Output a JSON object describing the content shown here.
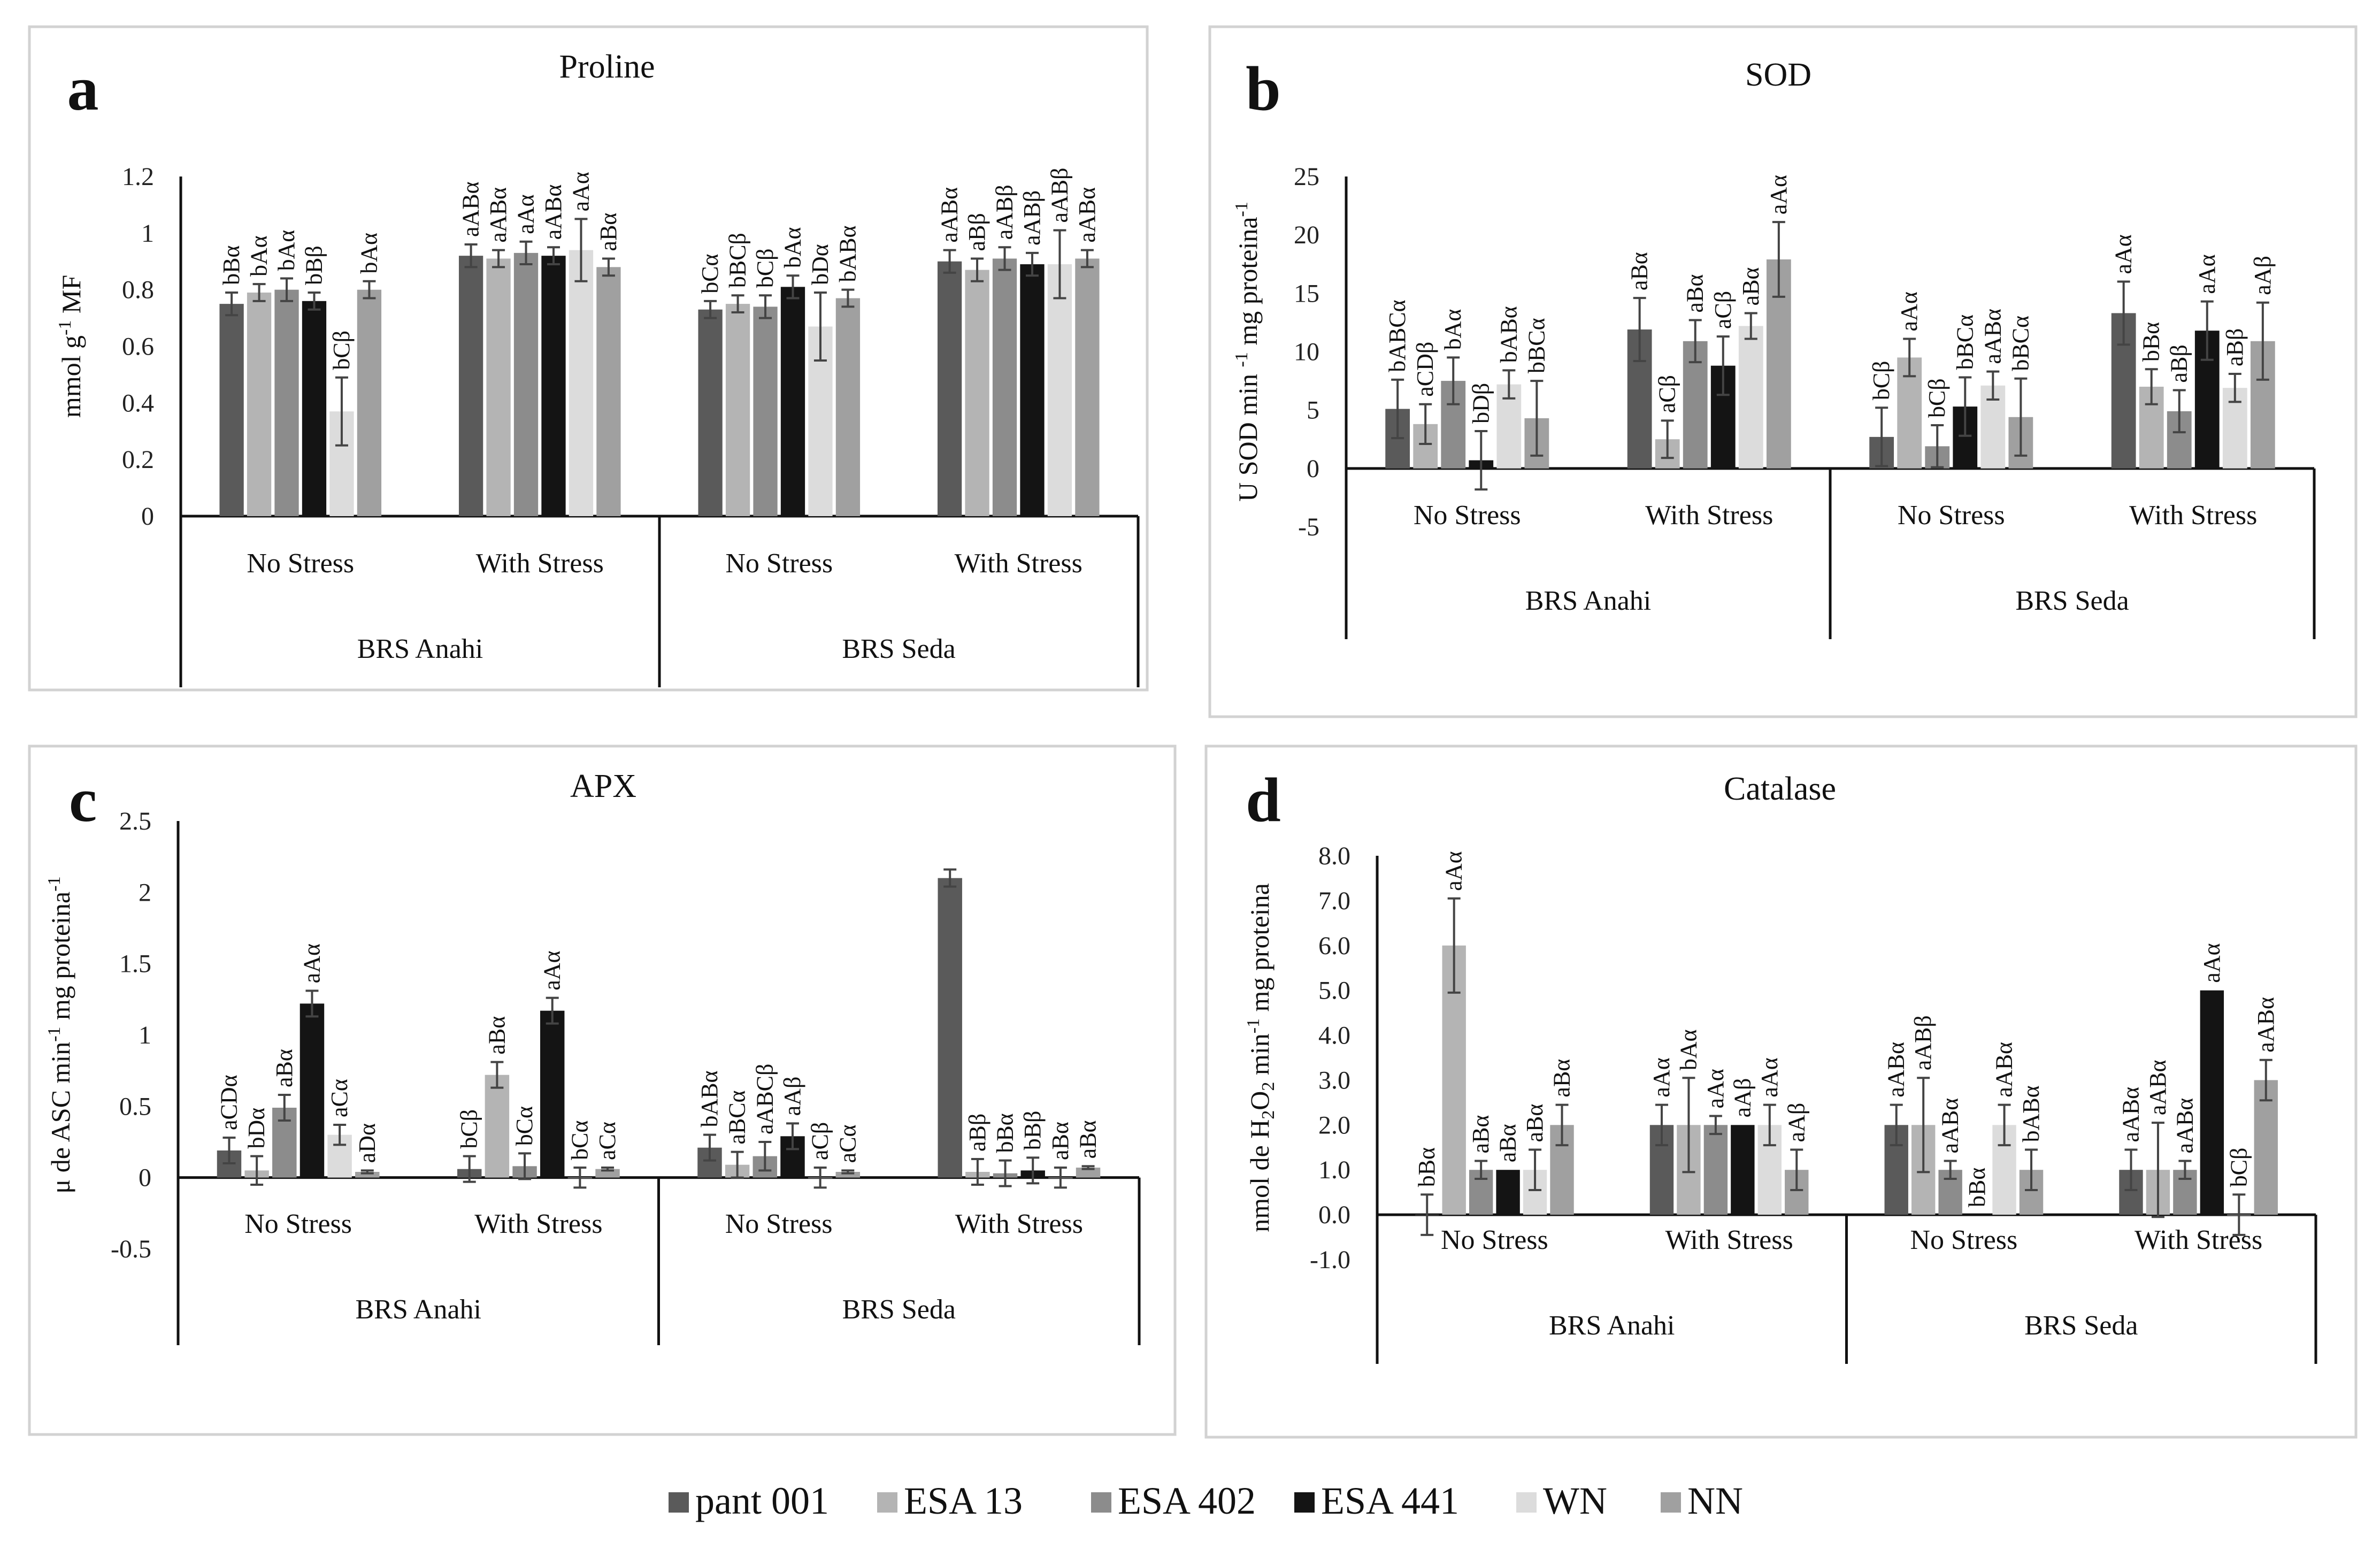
{
  "legend": {
    "items": [
      {
        "name": "pant 001",
        "color": "#5a5a5a"
      },
      {
        "name": "ESA 13",
        "color": "#b4b4b4"
      },
      {
        "name": "ESA 402",
        "color": "#8c8c8c"
      },
      {
        "name": "ESA 441",
        "color": "#141414"
      },
      {
        "name": "WN",
        "color": "#dcdcdc"
      },
      {
        "name": "NN",
        "color": "#a0a0a0"
      }
    ]
  },
  "chart_data": [
    {
      "type": "bar",
      "letter": "a",
      "title": "Proline",
      "ylabel_parts": [
        "mmol g",
        "-1",
        " MF"
      ],
      "ylim": [
        0,
        1.2
      ],
      "yticks": [
        "0",
        "0.2",
        "0.4",
        "0.6",
        "0.8",
        "1",
        "1.2"
      ],
      "categories": [
        "No Stress",
        "With Stress",
        "No Stress",
        "With Stress"
      ],
      "groups": [
        "BRS Anahi",
        "BRS Seda"
      ],
      "series": [
        {
          "name": "pant 001",
          "values": [
            0.75,
            0.92,
            0.73,
            0.9
          ],
          "errors": [
            0.04,
            0.04,
            0.03,
            0.04
          ],
          "labels": [
            "bBα",
            "aABα",
            "bCα",
            "aABα"
          ]
        },
        {
          "name": "ESA 13",
          "values": [
            0.79,
            0.91,
            0.75,
            0.87
          ],
          "errors": [
            0.03,
            0.03,
            0.03,
            0.04
          ],
          "labels": [
            "bAα",
            "aABα",
            "bBCβ",
            "aBβ"
          ]
        },
        {
          "name": "ESA 402",
          "values": [
            0.8,
            0.93,
            0.74,
            0.91
          ],
          "errors": [
            0.04,
            0.04,
            0.04,
            0.04
          ],
          "labels": [
            "bAα",
            "aAα",
            "bCβ",
            "aABβ"
          ]
        },
        {
          "name": "ESA 441",
          "values": [
            0.76,
            0.92,
            0.81,
            0.89
          ],
          "errors": [
            0.03,
            0.03,
            0.04,
            0.04
          ],
          "labels": [
            "bBβ",
            "aABα",
            "bAα",
            "aABβ"
          ]
        },
        {
          "name": "WN",
          "values": [
            0.37,
            0.94,
            0.67,
            0.89
          ],
          "errors": [
            0.12,
            0.11,
            0.12,
            0.12
          ],
          "labels": [
            "bCβ",
            "aAα",
            "bDα",
            "aABβ"
          ]
        },
        {
          "name": "NN",
          "values": [
            0.8,
            0.88,
            0.77,
            0.91
          ],
          "errors": [
            0.03,
            0.03,
            0.03,
            0.03
          ],
          "labels": [
            "bAα",
            "aBα",
            "bABα",
            "aABα"
          ]
        }
      ]
    },
    {
      "type": "bar",
      "letter": "b",
      "title": "SOD",
      "ylabel_parts": [
        "U SOD min ",
        "-1",
        " mg proteina",
        "-1",
        ""
      ],
      "ylim": [
        -5,
        25
      ],
      "yticks": [
        "-5",
        "0",
        "5",
        "10",
        "15",
        "20",
        "25"
      ],
      "categories": [
        "No Stress",
        "With Stress",
        "No Stress",
        "With Stress"
      ],
      "groups": [
        "BRS Anahi",
        "BRS Seda"
      ],
      "series": [
        {
          "name": "pant 001",
          "values": [
            5.1,
            11.9,
            2.7,
            13.3
          ],
          "errors": [
            2.5,
            2.7,
            2.5,
            2.7
          ],
          "labels": [
            "bABCα",
            "aBα",
            "bCβ",
            "aAα"
          ]
        },
        {
          "name": "ESA 13",
          "values": [
            3.8,
            2.5,
            9.5,
            7.0
          ],
          "errors": [
            1.7,
            1.6,
            1.6,
            1.5
          ],
          "labels": [
            "aCDβ",
            "aCβ",
            "aAα",
            "bBα"
          ]
        },
        {
          "name": "ESA 402",
          "values": [
            7.5,
            10.9,
            1.9,
            4.9
          ],
          "errors": [
            2.0,
            1.8,
            1.8,
            1.8
          ],
          "labels": [
            "bAα",
            "aBα",
            "bCβ",
            "aBβ"
          ]
        },
        {
          "name": "ESA 441",
          "values": [
            0.7,
            8.8,
            5.3,
            11.8
          ],
          "errors": [
            2.5,
            2.5,
            2.5,
            2.5
          ],
          "labels": [
            "bDβ",
            "aCβ",
            "bBCα",
            "aAα"
          ]
        },
        {
          "name": "WN",
          "values": [
            7.2,
            12.2,
            7.1,
            6.9
          ],
          "errors": [
            1.2,
            1.1,
            1.2,
            1.2
          ],
          "labels": [
            "bABα",
            "aBα",
            "aABα",
            "aBβ"
          ]
        },
        {
          "name": "NN",
          "values": [
            4.3,
            17.9,
            4.4,
            10.9
          ],
          "errors": [
            3.2,
            3.2,
            3.3,
            3.3
          ],
          "labels": [
            "bBCα",
            "aAα",
            "bBCα",
            "aAβ"
          ]
        }
      ]
    },
    {
      "type": "bar",
      "letter": "c",
      "title": "APX",
      "ylabel_parts": [
        "μ de ASC min",
        "-1",
        " mg proteina",
        "-1",
        ""
      ],
      "ylim": [
        -0.5,
        2.5
      ],
      "yticks": [
        "-0.5",
        "0",
        "0.5",
        "1",
        "1.5",
        "2",
        "2.5"
      ],
      "categories": [
        "No Stress",
        "With Stress",
        "No Stress",
        "With Stress"
      ],
      "groups": [
        "BRS Anahi",
        "BRS Seda"
      ],
      "series": [
        {
          "name": "pant 001",
          "values": [
            0.19,
            0.06,
            0.21,
            2.1
          ],
          "errors": [
            0.09,
            0.09,
            0.09,
            0.06
          ],
          "labels": [
            "aCDα",
            "bCβ",
            "bABα",
            ""
          ]
        },
        {
          "name": "ESA 13",
          "values": [
            0.05,
            0.72,
            0.09,
            0.04
          ],
          "errors": [
            0.1,
            0.09,
            0.09,
            0.09
          ],
          "labels": [
            "bDα",
            "aBα",
            "aBCα",
            "aBβ"
          ]
        },
        {
          "name": "ESA 402",
          "values": [
            0.49,
            0.08,
            0.15,
            0.03
          ],
          "errors": [
            0.09,
            0.09,
            0.1,
            0.09
          ],
          "labels": [
            "aBα",
            "bCα",
            "aABCβ",
            "bBα"
          ]
        },
        {
          "name": "ESA 441",
          "values": [
            1.22,
            1.17,
            0.29,
            0.05
          ],
          "errors": [
            0.09,
            0.09,
            0.09,
            0.09
          ],
          "labels": [
            "aAα",
            "aAα",
            "aAβ",
            "bBβ"
          ]
        },
        {
          "name": "WN",
          "values": [
            0.3,
            0.0,
            0.0,
            0.0
          ],
          "errors": [
            0.07,
            0.07,
            0.07,
            0.07
          ],
          "labels": [
            "aCα",
            "bCα",
            "aCβ",
            "aBα"
          ]
        },
        {
          "name": "NN",
          "values": [
            0.04,
            0.06,
            0.04,
            0.07
          ],
          "errors": [
            0.01,
            0.01,
            0.01,
            0.01
          ],
          "labels": [
            "aDα",
            "aCα",
            "aCα",
            "aBα"
          ]
        }
      ]
    },
    {
      "type": "bar",
      "letter": "d",
      "title": "Catalase",
      "ylabel_parts": [
        "nmol de H",
        "2",
        "O",
        "2",
        " min",
        "-1",
        " mg proteina"
      ],
      "ylim": [
        -1,
        8
      ],
      "yticks": [
        "-1.0",
        "0.0",
        "1.0",
        "2.0",
        "3.0",
        "4.0",
        "5.0",
        "6.0",
        "7.0",
        "8.0"
      ],
      "categories": [
        "No Stress",
        "With Stress",
        "No Stress",
        "With Stress"
      ],
      "groups": [
        "BRS Anahi",
        "BRS Seda"
      ],
      "series": [
        {
          "name": "pant 001",
          "values": [
            0,
            2,
            2,
            1
          ],
          "errors": [
            0.45,
            0.45,
            0.45,
            0.45
          ],
          "labels": [
            "bBα",
            "aAα",
            "aABα",
            "aABα"
          ]
        },
        {
          "name": "ESA 13",
          "values": [
            6,
            2,
            2,
            1
          ],
          "errors": [
            1.05,
            1.05,
            1.05,
            1.05
          ],
          "labels": [
            "aAα",
            "bAα",
            "aABβ",
            "aABα"
          ]
        },
        {
          "name": "ESA 402",
          "values": [
            1,
            2,
            1,
            1
          ],
          "errors": [
            0.2,
            0.2,
            0.2,
            0.2
          ],
          "labels": [
            "aBα",
            "aAα",
            "aABα",
            "aABα"
          ]
        },
        {
          "name": "ESA 441",
          "values": [
            1,
            2,
            0,
            5
          ],
          "errors": [
            0.0,
            0.0,
            0.0,
            0.0
          ],
          "labels": [
            "aBα",
            "aAβ",
            "bBα",
            "aAα"
          ]
        },
        {
          "name": "WN",
          "values": [
            1,
            2,
            2,
            0
          ],
          "errors": [
            0.45,
            0.45,
            0.45,
            0.45
          ],
          "labels": [
            "aBα",
            "aAα",
            "aABα",
            "bCβ"
          ]
        },
        {
          "name": "NN",
          "values": [
            2,
            1,
            1,
            3
          ],
          "errors": [
            0.45,
            0.45,
            0.45,
            0.45
          ],
          "labels": [
            "aBα",
            "aAβ",
            "bABα",
            "aABα"
          ]
        }
      ]
    }
  ]
}
